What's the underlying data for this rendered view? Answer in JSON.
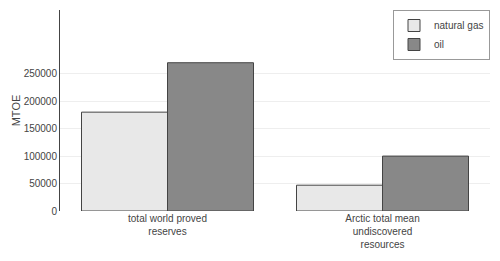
{
  "chart_data": {
    "type": "bar",
    "categories": [
      "total world proved\nreserves",
      "Arctic total mean\nundiscovered\nresources"
    ],
    "series": [
      {
        "name": "natural gas",
        "color": "#e8e8e8",
        "values": [
          180000,
          47000
        ]
      },
      {
        "name": "oil",
        "color": "#888888",
        "values": [
          270000,
          100000
        ]
      }
    ],
    "ylabel": "MTOE",
    "ylim": [
      0,
      366000
    ],
    "yticks": [
      0,
      50000,
      100000,
      150000,
      200000,
      250000
    ],
    "grid": true,
    "legend": "upper right"
  }
}
